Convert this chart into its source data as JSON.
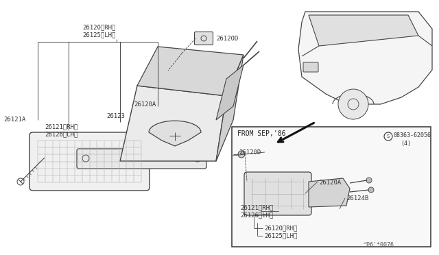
{
  "bg_color": "#ffffff",
  "lc": "#444444",
  "tc": "#333333",
  "fig_width": 6.4,
  "fig_height": 3.72,
  "dpi": 100,
  "watermark": "^P6'*0076",
  "label_26120_top": [
    "26120〈RH〉",
    "26125〈LH〉"
  ],
  "label_26121A": "26121A",
  "label_26121_rh": "26121〈RH〉",
  "label_26126_lh": "26126〈LH〉",
  "label_26123": "26123",
  "label_26120A": "26120A",
  "label_26120D": "26120D",
  "label_from": "FROM SEP,'86",
  "label_s_num": "08363-62056",
  "label_s4": "(4)",
  "label_26120D_i": "26120D",
  "label_26121_i": "26121〈RH〉",
  "label_26126_i": "26126〈LH〉",
  "label_26120A_i": "26120A",
  "label_26124B": "26124B",
  "label_26120_i": "26120〈RH〉",
  "label_26125_i": "26125〈LH〉"
}
